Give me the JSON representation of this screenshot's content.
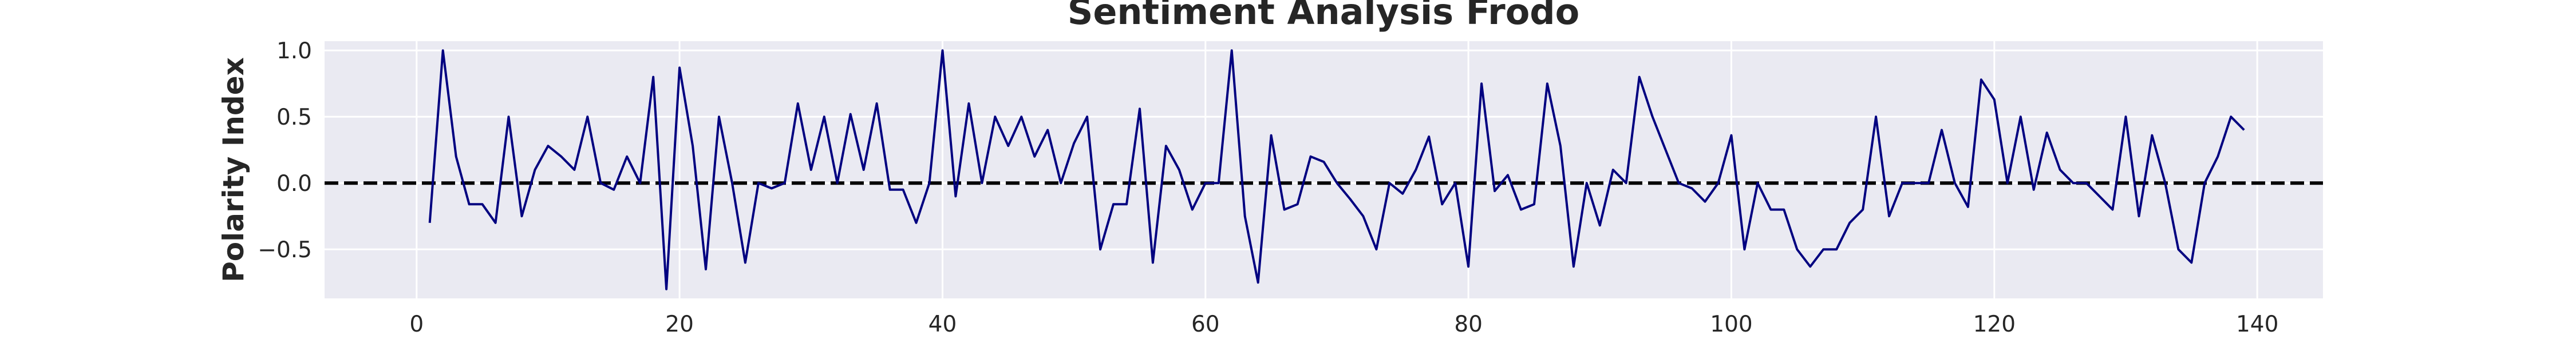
{
  "chart_data": {
    "type": "line",
    "title": "Sentiment Analysis Frodo",
    "xlabel": "",
    "ylabel": "Polarity Index",
    "xlim": [
      -7,
      145
    ],
    "ylim": [
      -0.87,
      1.07
    ],
    "grid": true,
    "legend": "none",
    "x_ticks": [
      0,
      20,
      40,
      60,
      80,
      100,
      120,
      140
    ],
    "x_tick_labels": [
      "0",
      "20",
      "40",
      "60",
      "80",
      "100",
      "120",
      "140"
    ],
    "y_ticks": [
      1.0,
      0.5,
      0.0,
      -0.5
    ],
    "y_tick_labels": [
      "1.0",
      "0.5",
      "0.0",
      "−0.5"
    ],
    "reference_line": {
      "y": 0.0,
      "style": "dashed",
      "color": "#000000"
    },
    "colors": {
      "line": "#000080",
      "plot_background": "#eaeaf2",
      "grid": "#ffffff"
    },
    "series": [
      {
        "x": [
          1,
          2,
          3,
          4,
          5,
          6,
          7,
          8,
          9,
          10,
          11,
          12,
          13,
          14,
          15,
          16,
          17,
          18,
          19,
          20,
          21,
          22,
          23,
          24,
          25,
          26,
          27,
          28,
          29,
          30,
          31,
          32,
          33,
          34,
          35,
          36,
          37,
          38,
          39,
          40,
          41,
          42,
          43,
          44,
          45,
          46,
          47,
          48,
          49,
          50,
          51,
          52,
          53,
          54,
          55,
          56,
          57,
          58,
          59,
          60,
          61,
          62,
          63,
          64,
          65,
          66,
          67,
          68,
          69,
          70,
          71,
          72,
          73,
          74,
          75,
          76,
          77,
          78,
          79,
          80,
          81,
          82,
          83,
          84,
          85,
          86,
          87,
          88,
          89,
          90,
          91,
          92,
          93,
          94,
          95,
          96,
          97,
          98,
          99,
          100,
          101,
          102,
          103,
          104,
          105,
          106,
          107,
          108,
          109,
          110,
          111,
          112,
          113,
          114,
          115,
          116,
          117,
          118,
          119,
          120,
          121,
          122,
          123,
          124,
          125,
          126,
          127,
          128,
          129,
          130,
          131,
          132,
          133,
          134,
          135,
          136,
          137,
          138,
          139
        ],
        "y": [
          -0.3,
          1.0,
          0.2,
          -0.16,
          -0.16,
          -0.3,
          0.5,
          -0.25,
          0.1,
          0.28,
          0.2,
          0.1,
          0.5,
          0.0,
          -0.05,
          0.2,
          0.0,
          0.8,
          -0.8,
          0.87,
          0.28,
          -0.65,
          0.5,
          0.0,
          -0.6,
          0.0,
          -0.04,
          0.0,
          0.6,
          0.1,
          0.5,
          0.0,
          0.52,
          0.1,
          0.6,
          -0.05,
          -0.05,
          -0.3,
          0.0,
          1.0,
          -0.1,
          0.6,
          0.0,
          0.5,
          0.28,
          0.5,
          0.2,
          0.4,
          0.0,
          0.3,
          0.5,
          -0.5,
          -0.16,
          -0.16,
          0.56,
          -0.6,
          0.28,
          0.1,
          -0.2,
          0.0,
          0.0,
          1.0,
          -0.25,
          -0.75,
          0.36,
          -0.2,
          -0.16,
          0.2,
          0.16,
          0.0,
          -0.12,
          -0.25,
          -0.5,
          0.0,
          -0.08,
          0.1,
          0.35,
          -0.16,
          0.0,
          -0.63,
          0.75,
          -0.06,
          0.06,
          -0.2,
          -0.16,
          0.75,
          0.28,
          -0.63,
          0.0,
          -0.32,
          0.1,
          0.0,
          0.8,
          0.5,
          0.25,
          0.0,
          -0.04,
          -0.14,
          0.0,
          0.36,
          -0.5,
          0.0,
          -0.2,
          -0.2,
          -0.5,
          -0.63,
          -0.5,
          -0.5,
          -0.3,
          -0.2,
          0.5,
          -0.25,
          0.0,
          0.0,
          0.0,
          0.4,
          0.0,
          -0.18,
          0.78,
          0.63,
          0.0,
          0.5,
          -0.05,
          0.38,
          0.1,
          0.0,
          0.0,
          -0.1,
          -0.2,
          0.5,
          -0.25,
          0.36,
          0.0,
          -0.5,
          -0.6,
          0.0,
          0.2,
          0.5,
          0.4
        ]
      }
    ]
  }
}
